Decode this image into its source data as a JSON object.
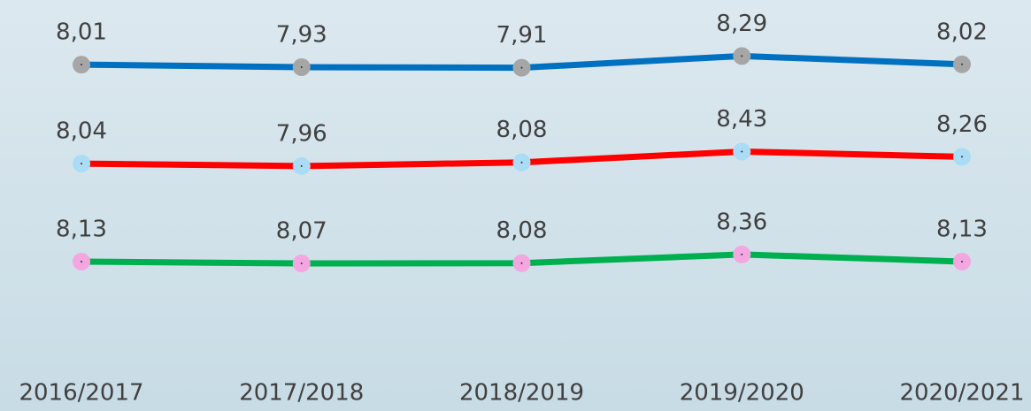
{
  "chart_data": {
    "type": "line",
    "categories": [
      "2016/2017",
      "2017/2018",
      "2018/2019",
      "2019/2020",
      "2020/2021"
    ],
    "series": [
      {
        "color": "#0070c0",
        "marker_color": "#a6a6a6",
        "values": [
          8.01,
          7.93,
          7.91,
          8.29,
          8.02
        ],
        "value_labels": [
          "8,01",
          "7,93",
          "7,91",
          "8,29",
          "8,02"
        ]
      },
      {
        "color": "#ff0000",
        "marker_color": "#aadcf5",
        "values": [
          8.04,
          7.96,
          8.08,
          8.43,
          8.26
        ],
        "value_labels": [
          "8,04",
          "7,96",
          "8,08",
          "8,43",
          "8,26"
        ]
      },
      {
        "color": "#00b050",
        "marker_color": "#f4a6e0",
        "values": [
          8.13,
          8.07,
          8.08,
          8.36,
          8.13
        ],
        "value_labels": [
          "8,13",
          "8,07",
          "8,08",
          "8,36",
          "8,13"
        ]
      }
    ]
  }
}
